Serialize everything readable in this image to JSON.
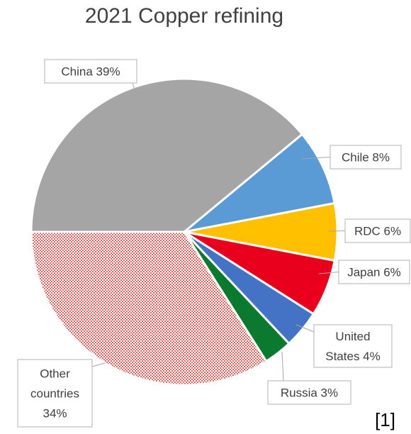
{
  "chart_data": {
    "type": "pie",
    "title": "2021 Copper refining",
    "start_angle_deg": 180,
    "direction": "clockwise",
    "slices": [
      {
        "label_lines": [
          "China 39%"
        ],
        "value": 39,
        "color": "#a5a5a5"
      },
      {
        "label_lines": [
          "Chile 8%"
        ],
        "value": 8,
        "color": "#5b9bd5"
      },
      {
        "label_lines": [
          "RDC 6%"
        ],
        "value": 6,
        "color": "#ffc000"
      },
      {
        "label_lines": [
          "Japan 6%"
        ],
        "value": 6,
        "color": "#e8001c"
      },
      {
        "label_lines": [
          "United",
          "States 4%"
        ],
        "value": 4,
        "color": "#4472c4"
      },
      {
        "label_lines": [
          "Russia 3%"
        ],
        "value": 3,
        "color": "#0b7a2e"
      },
      {
        "label_lines": [
          "Other",
          "countries",
          "34%"
        ],
        "value": 34,
        "color": "#c00000",
        "pattern": "dotted"
      }
    ]
  },
  "footnote": "[1]"
}
